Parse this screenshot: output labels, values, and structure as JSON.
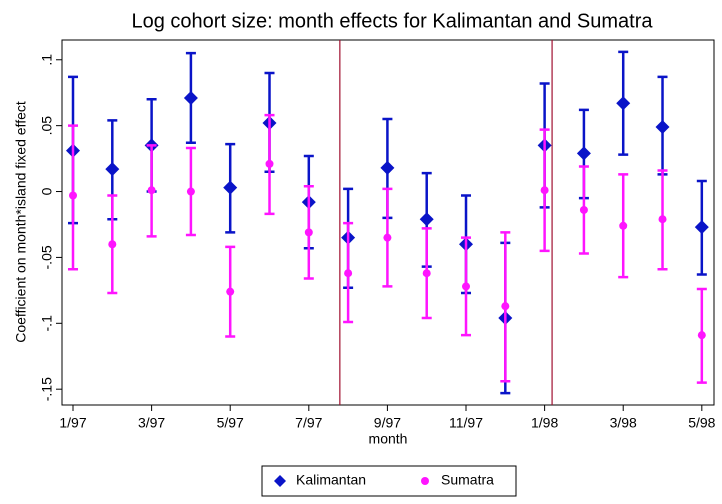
{
  "chart_data": {
    "type": "errorbar",
    "title": "Log cohort size: month effects for Kalimantan and Sumatra",
    "x_label": "month",
    "y_label": "Coefficient on month*island fixed effect",
    "x": [
      1,
      2,
      3,
      4,
      5,
      6,
      7,
      8,
      9,
      10,
      11,
      12,
      13,
      14,
      15,
      16,
      17
    ],
    "xlim": [
      0.72,
      17.31
    ],
    "xticks": [
      {
        "value": 1,
        "label": "1/97"
      },
      {
        "value": 3,
        "label": "3/97"
      },
      {
        "value": 5,
        "label": "5/97"
      },
      {
        "value": 7,
        "label": "7/97"
      },
      {
        "value": 9,
        "label": "9/97"
      },
      {
        "value": 11,
        "label": "11/97"
      },
      {
        "value": 13,
        "label": "1/98"
      },
      {
        "value": 15,
        "label": "3/98"
      },
      {
        "value": 17,
        "label": "5/98"
      }
    ],
    "ylim": [
      -0.162,
      0.115
    ],
    "yticks": [
      {
        "value": -0.15,
        "label": "-.15"
      },
      {
        "value": -0.1,
        "label": "-.1"
      },
      {
        "value": -0.05,
        "label": "-.05"
      },
      0,
      {
        "value": 0.05,
        "label": ".05"
      },
      {
        "value": 0.1,
        "label": ".1"
      }
    ],
    "vlines": [
      7.79,
      13.19
    ],
    "vline_color": "#a01030",
    "series": [
      {
        "name": "Kalimantan",
        "color": "#0a14c8",
        "marker": "diamond",
        "values": [
          0.031,
          0.017,
          0.035,
          0.071,
          0.003,
          0.052,
          -0.008,
          -0.035,
          0.018,
          -0.021,
          -0.04,
          -0.096,
          0.035,
          0.029,
          0.067,
          0.049,
          -0.027
        ],
        "lower": [
          -0.024,
          -0.021,
          0.0,
          0.037,
          -0.031,
          0.015,
          -0.043,
          -0.073,
          -0.02,
          -0.057,
          -0.077,
          -0.153,
          -0.012,
          -0.005,
          0.028,
          0.013,
          -0.063
        ],
        "upper": [
          0.087,
          0.054,
          0.07,
          0.105,
          0.036,
          0.09,
          0.027,
          0.002,
          0.055,
          0.014,
          -0.003,
          -0.039,
          0.082,
          0.062,
          0.106,
          0.087,
          0.008
        ]
      },
      {
        "name": "Sumatra",
        "color": "#ff14ff",
        "marker": "circle",
        "values": [
          -0.003,
          -0.04,
          0.001,
          0.0,
          -0.076,
          0.021,
          -0.031,
          -0.062,
          -0.035,
          -0.062,
          -0.072,
          -0.087,
          0.001,
          -0.014,
          -0.026,
          -0.021,
          -0.109
        ],
        "lower": [
          -0.059,
          -0.077,
          -0.034,
          -0.033,
          -0.11,
          -0.017,
          -0.066,
          -0.099,
          -0.072,
          -0.096,
          -0.109,
          -0.144,
          -0.045,
          -0.047,
          -0.065,
          -0.059,
          -0.145
        ],
        "upper": [
          0.05,
          -0.003,
          0.035,
          0.033,
          -0.042,
          0.058,
          0.004,
          -0.024,
          0.002,
          -0.028,
          -0.035,
          -0.031,
          0.047,
          0.019,
          0.013,
          0.016,
          -0.074
        ]
      }
    ]
  }
}
